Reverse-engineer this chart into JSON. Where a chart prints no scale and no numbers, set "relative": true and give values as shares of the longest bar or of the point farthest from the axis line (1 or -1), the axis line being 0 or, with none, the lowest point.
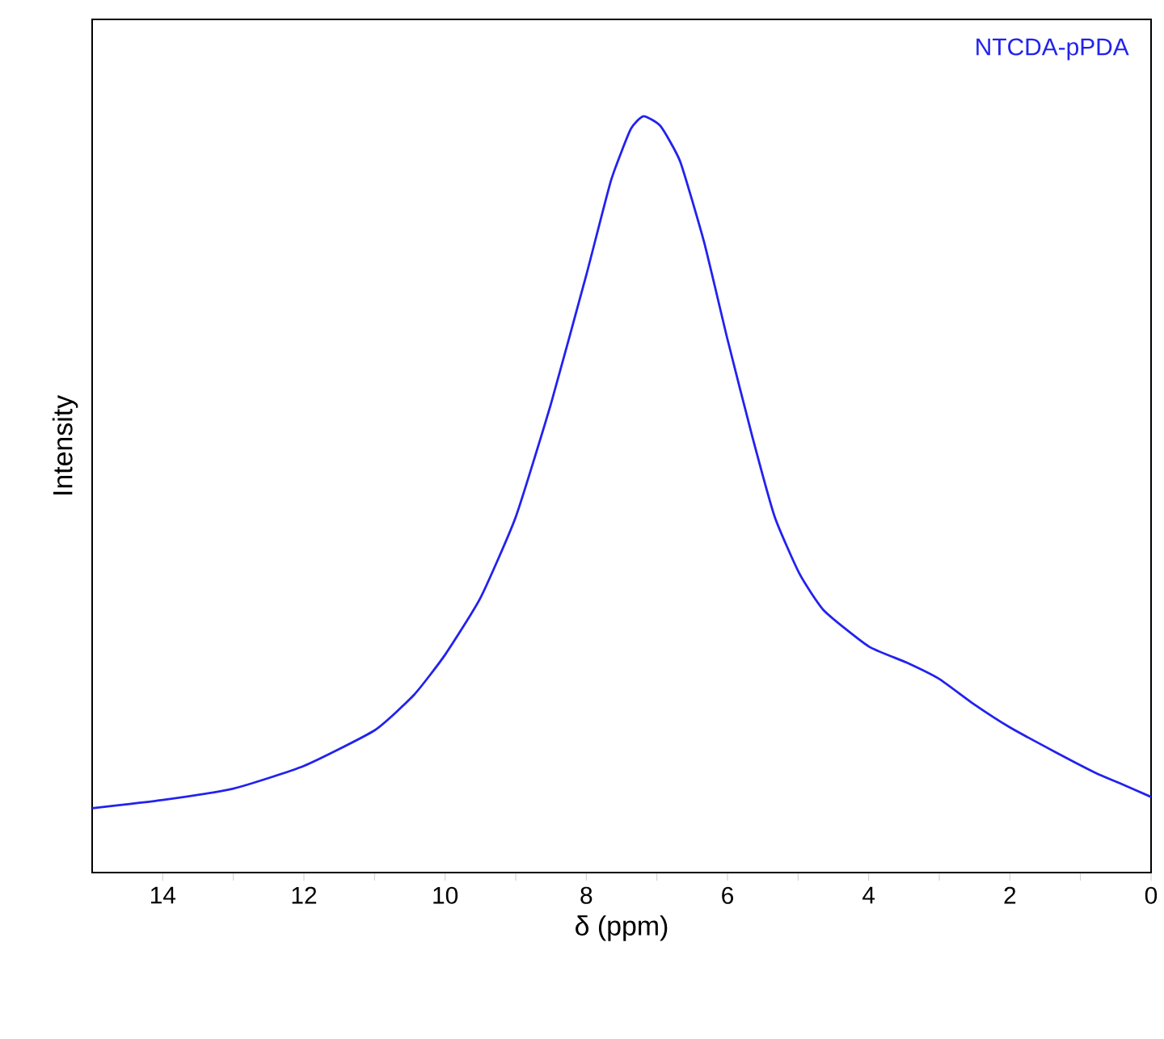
{
  "chart_data": {
    "type": "line",
    "relative": true,
    "xlabel": "δ (ppm)",
    "ylabel": "Intensity",
    "xlim": [
      15,
      0
    ],
    "xticks": [
      14,
      {
        "value": 13,
        "label": null
      },
      12,
      {
        "value": 11,
        "label": null
      },
      10,
      {
        "value": 9,
        "label": null
      },
      8,
      {
        "value": 7,
        "label": null
      },
      6,
      {
        "value": 5,
        "label": null
      },
      4,
      {
        "value": 3,
        "label": null
      },
      2,
      {
        "value": 1,
        "label": null
      },
      0
    ],
    "series": [
      {
        "name": "NTCDA-pPDA",
        "color": "#2222ee",
        "x": [
          15,
          14,
          13,
          12,
          11,
          10.44,
          10,
          9.5,
          9,
          8.5,
          8,
          7.65,
          7.37,
          7.19,
          6.95,
          6.67,
          6.33,
          6,
          5.65,
          5.33,
          4.98,
          4.63,
          4,
          3.47,
          3,
          2.53,
          2,
          1.37,
          0.79,
          0.44,
          0
        ],
        "values": [
          0.085,
          0.096,
          0.111,
          0.141,
          0.188,
          0.235,
          0.288,
          0.363,
          0.47,
          0.62,
          0.79,
          0.915,
          0.983,
          1.0,
          0.987,
          0.94,
          0.833,
          0.705,
          0.577,
          0.47,
          0.395,
          0.346,
          0.299,
          0.278,
          0.256,
          0.224,
          0.192,
          0.16,
          0.132,
          0.118,
          0.1
        ]
      }
    ]
  }
}
